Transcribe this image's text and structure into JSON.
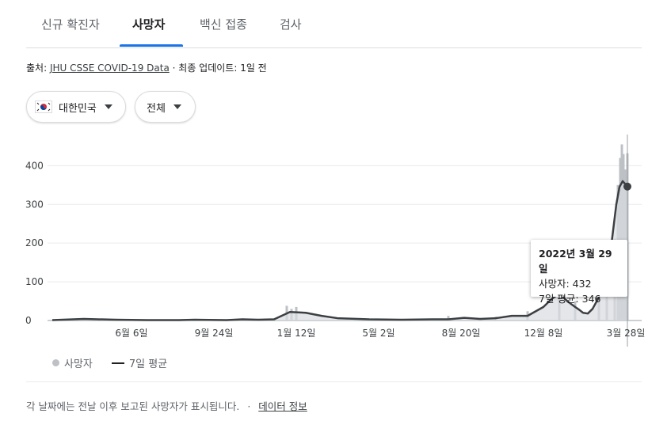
{
  "tabs": [
    {
      "label": "신규 확진자",
      "active": false
    },
    {
      "label": "사망자",
      "active": true
    },
    {
      "label": "백신 접종",
      "active": false
    },
    {
      "label": "검사",
      "active": false
    }
  ],
  "source": {
    "prefix": "출처:",
    "link": "JHU CSSE COVID-19 Data",
    "separator": "·",
    "update": "최종 업데이트: 1일 전"
  },
  "filters": {
    "country": "대한민국",
    "region": "전체"
  },
  "tooltip": {
    "date": "2022년 3월 29일",
    "deaths_label": "사망자: 432",
    "avg_label": "7일 평균: 346"
  },
  "legend": {
    "deaths": "사망자",
    "avg": "7일 평균"
  },
  "footer": {
    "note": "각 날짜에는 전날 이후 보고된 사망자가 표시됩니다.",
    "separator": "·",
    "link": "데이터 정보"
  },
  "colors": {
    "accent": "#1a73e8",
    "bars": "#bdc1c6",
    "line": "#3c4043"
  },
  "chart_data": {
    "type": "line",
    "ylim": [
      0,
      460
    ],
    "yticks": [
      0,
      100,
      200,
      300,
      400
    ],
    "xtick_labels": [
      "6월 6일",
      "9월 24일",
      "1월 12일",
      "5월 2일",
      "8월 20일",
      "12월 8일",
      "3월 28일"
    ],
    "series": [
      {
        "name": "7일 평균",
        "kind": "line",
        "points": [
          [
            0,
            1
          ],
          [
            40,
            4
          ],
          [
            80,
            2
          ],
          [
            120,
            1
          ],
          [
            160,
            1
          ],
          [
            180,
            2
          ],
          [
            220,
            1
          ],
          [
            240,
            3
          ],
          [
            260,
            2
          ],
          [
            280,
            3
          ],
          [
            300,
            22
          ],
          [
            320,
            20
          ],
          [
            340,
            12
          ],
          [
            360,
            6
          ],
          [
            400,
            3
          ],
          [
            440,
            2
          ],
          [
            480,
            3
          ],
          [
            500,
            3
          ],
          [
            520,
            7
          ],
          [
            540,
            4
          ],
          [
            560,
            6
          ],
          [
            580,
            12
          ],
          [
            600,
            12
          ],
          [
            620,
            35
          ],
          [
            630,
            55
          ],
          [
            640,
            70
          ],
          [
            650,
            50
          ],
          [
            660,
            35
          ],
          [
            665,
            28
          ],
          [
            670,
            20
          ],
          [
            676,
            18
          ],
          [
            682,
            30
          ],
          [
            690,
            60
          ],
          [
            700,
            120
          ],
          [
            706,
            200
          ],
          [
            712,
            300
          ],
          [
            716,
            345
          ],
          [
            720,
            360
          ],
          [
            726,
            346
          ]
        ]
      },
      {
        "name": "사망자",
        "kind": "bars",
        "points": [
          [
            296,
            38
          ],
          [
            302,
            30
          ],
          [
            308,
            35
          ],
          [
            500,
            12
          ],
          [
            560,
            10
          ],
          [
            600,
            24
          ],
          [
            640,
            60
          ],
          [
            660,
            50
          ],
          [
            690,
            95
          ],
          [
            700,
            140
          ],
          [
            710,
            210
          ],
          [
            714,
            350
          ],
          [
            717,
            420
          ],
          [
            719,
            455
          ],
          [
            721,
            430
          ],
          [
            723,
            390
          ],
          [
            726,
            432
          ]
        ]
      }
    ]
  }
}
